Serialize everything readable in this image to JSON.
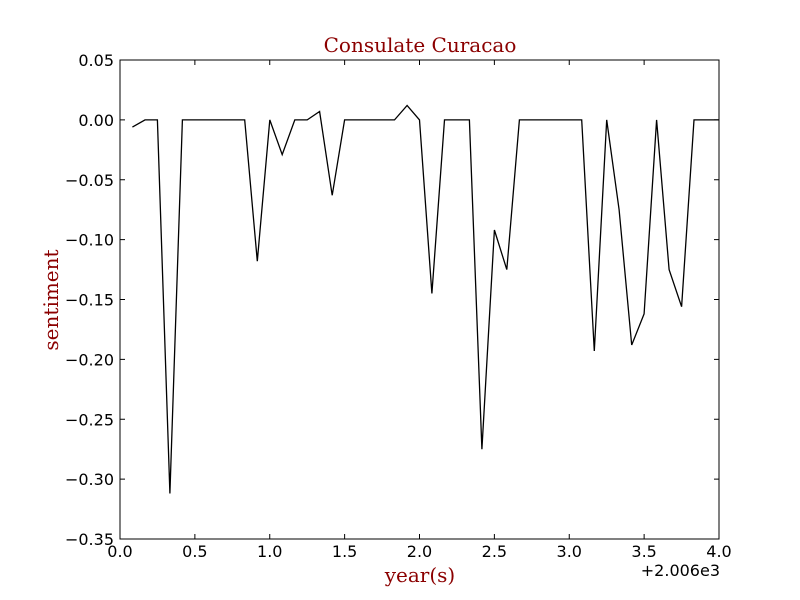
{
  "chart_data": {
    "type": "line",
    "title": "Consulate Curacao",
    "xlabel": "year(s)",
    "ylabel": "sentiment",
    "x_offset_label": "+2.006e3",
    "xlim": [
      0.0,
      4.0
    ],
    "ylim": [
      -0.35,
      0.05
    ],
    "x_ticks": [
      0.0,
      0.5,
      1.0,
      1.5,
      2.0,
      2.5,
      3.0,
      3.5,
      4.0
    ],
    "x_tick_labels": [
      "0.0",
      "0.5",
      "1.0",
      "1.5",
      "2.0",
      "2.5",
      "3.0",
      "3.5",
      "4.0"
    ],
    "y_ticks": [
      0.05,
      0.0,
      -0.05,
      -0.1,
      -0.15,
      -0.2,
      -0.25,
      -0.3,
      -0.35
    ],
    "y_tick_labels": [
      "0.05",
      "0.00",
      "−0.05",
      "−0.10",
      "−0.15",
      "−0.20",
      "−0.25",
      "−0.30",
      "−0.35"
    ],
    "grid": false,
    "colors": {
      "line": "#000000",
      "title": "#8b0000",
      "axis_label": "#8b0000"
    },
    "series": [
      {
        "x": [
          0.083,
          0.167,
          0.25,
          0.333,
          0.417,
          0.5,
          0.583,
          0.667,
          0.75,
          0.833,
          0.917,
          1.0,
          1.083,
          1.167,
          1.25,
          1.333,
          1.417,
          1.5,
          1.583,
          1.667,
          1.75,
          1.833,
          1.917,
          2.0,
          2.083,
          2.167,
          2.25,
          2.333,
          2.417,
          2.5,
          2.583,
          2.667,
          2.75,
          2.833,
          2.917,
          3.0,
          3.083,
          3.167,
          3.25,
          3.333,
          3.417,
          3.5,
          3.583,
          3.667,
          3.75,
          3.833,
          3.917,
          4.0
        ],
        "y": [
          -0.006,
          0.0,
          0.0,
          -0.312,
          0.0,
          0.0,
          0.0,
          0.0,
          0.0,
          0.0,
          -0.118,
          0.0,
          -0.029,
          0.0,
          0.0,
          0.007,
          -0.063,
          0.0,
          0.0,
          0.0,
          0.0,
          0.0,
          0.012,
          0.0,
          -0.145,
          0.0,
          0.0,
          0.0,
          -0.275,
          -0.092,
          -0.125,
          0.0,
          0.0,
          0.0,
          0.0,
          0.0,
          0.0,
          -0.193,
          0.0,
          -0.075,
          -0.188,
          -0.162,
          0.0,
          -0.125,
          -0.156,
          0.0,
          0.0,
          0.0
        ]
      }
    ]
  }
}
